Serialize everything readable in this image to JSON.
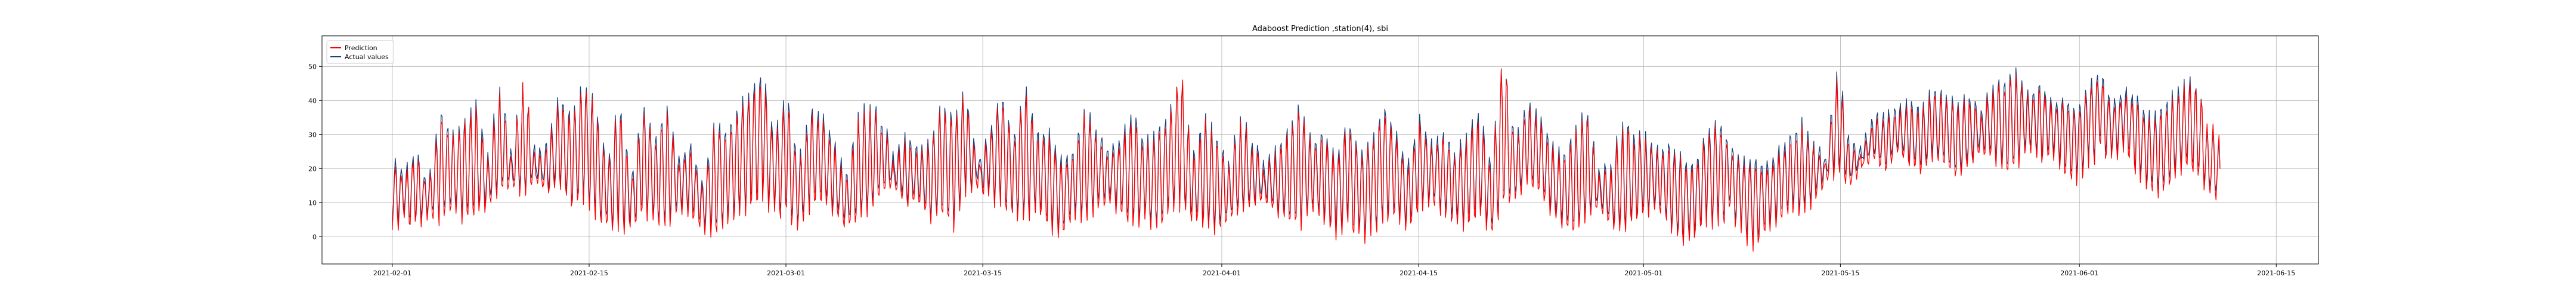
{
  "chart_data": {
    "type": "line",
    "title": "Adaboost Prediction ,station(4), sbi",
    "xlabel": "",
    "ylabel": "",
    "x_start": "2021-02-01",
    "x_end": "2021-06-11",
    "xlim": [
      "2021-01-27",
      "2021-06-18"
    ],
    "ylim": [
      -8,
      59
    ],
    "x_ticks": [
      "2021-02-01",
      "2021-02-15",
      "2021-03-01",
      "2021-03-15",
      "2021-04-01",
      "2021-04-15",
      "2021-05-01",
      "2021-05-15",
      "2021-06-01",
      "2021-06-15"
    ],
    "y_ticks": [
      0,
      10,
      20,
      30,
      40,
      50
    ],
    "grid": true,
    "legend_position": "top-left",
    "series": [
      {
        "name": "Prediction",
        "color": "#ff0000",
        "peaks": [
          22,
          18,
          25,
          14,
          36,
          29,
          33,
          38,
          22,
          44,
          24,
          48,
          22,
          26,
          40,
          34,
          44,
          38,
          20,
          40,
          16,
          38,
          28,
          38,
          22,
          26,
          14,
          34,
          30,
          38,
          42,
          48,
          28,
          42,
          20,
          36,
          34,
          26,
          16,
          34,
          38,
          34,
          22,
          28,
          24,
          26,
          38,
          34,
          42,
          20,
          30,
          42,
          28,
          44,
          30,
          30,
          22,
          24,
          38,
          30,
          24,
          28,
          36,
          26,
          30,
          34,
          50,
          22,
          34,
          28,
          20,
          34,
          28,
          20,
          24,
          30,
          38,
          26,
          30,
          22,
          34,
          24,
          28,
          38,
          30,
          20,
          34,
          26,
          30,
          24,
          30,
          36,
          20,
          56,
          26,
          38,
          34,
          26,
          22,
          30,
          36,
          18,
          20,
          34,
          30,
          28,
          24,
          26,
          22,
          20,
          30,
          34,
          26,
          22,
          22,
          20,
          24,
          28,
          32,
          26,
          22,
          50,
          26,
          24,
          34,
          34,
          36,
          38,
          36,
          42,
          40,
          38,
          40,
          36,
          44,
          46,
          48,
          40,
          44,
          38,
          40,
          36,
          44,
          48,
          38,
          42,
          40,
          34,
          36,
          40,
          44,
          46,
          34,
          30,
          24
        ],
        "troughs": [
          2,
          4,
          2,
          6,
          4,
          8,
          4,
          6,
          8,
          12,
          14,
          10,
          16,
          12,
          14,
          8,
          10,
          4,
          2,
          0,
          2,
          6,
          4,
          2,
          8,
          6,
          2,
          0,
          4,
          6,
          8,
          10,
          6,
          4,
          2,
          8,
          10,
          6,
          2,
          4,
          6,
          12,
          14,
          8,
          10,
          4,
          6,
          2,
          12,
          14,
          10,
          8,
          6,
          4,
          8,
          2,
          0,
          6,
          4,
          8,
          10,
          6,
          2,
          4,
          0,
          6,
          8,
          4,
          2,
          0,
          4,
          6,
          8,
          10,
          6,
          4,
          2,
          8,
          4,
          0,
          2,
          -2,
          0,
          4,
          6,
          2,
          8,
          10,
          6,
          4,
          2,
          6,
          0,
          8,
          10,
          14,
          12,
          6,
          2,
          0,
          4,
          8,
          2,
          0,
          4,
          6,
          8,
          2,
          -2,
          0,
          4,
          2,
          6,
          0,
          -4,
          2,
          4,
          8,
          6,
          10,
          16,
          18,
          14,
          20,
          22,
          18,
          24,
          20,
          18,
          22,
          20,
          16,
          20,
          24,
          22,
          18,
          20,
          26,
          22,
          24,
          18,
          16,
          20,
          24,
          22,
          26,
          18,
          14,
          12,
          16,
          20,
          18,
          12,
          10
        ]
      },
      {
        "name": "Actual values",
        "color": "#1f3f7a",
        "peaks": [
          24,
          20,
          26,
          15,
          38,
          30,
          34,
          40,
          24,
          46,
          26,
          47,
          24,
          28,
          42,
          36,
          46,
          40,
          22,
          42,
          18,
          40,
          30,
          40,
          24,
          28,
          16,
          36,
          32,
          40,
          44,
          50,
          30,
          44,
          22,
          38,
          36,
          28,
          18,
          36,
          40,
          36,
          24,
          30,
          26,
          28,
          40,
          36,
          44,
          22,
          32,
          44,
          30,
          46,
          32,
          32,
          24,
          26,
          40,
          32,
          26,
          30,
          38,
          28,
          32,
          36,
          48,
          24,
          36,
          30,
          22,
          36,
          30,
          22,
          26,
          32,
          40,
          28,
          32,
          24,
          36,
          26,
          30,
          40,
          32,
          22,
          36,
          28,
          32,
          26,
          32,
          38,
          22,
          55,
          28,
          40,
          36,
          28,
          24,
          32,
          38,
          20,
          22,
          36,
          32,
          30,
          26,
          28,
          24,
          22,
          32,
          36,
          28,
          24,
          24,
          22,
          26,
          30,
          34,
          28,
          24,
          52,
          28,
          26,
          36,
          36,
          38,
          40,
          38,
          44,
          42,
          40,
          42,
          38,
          46,
          48,
          50,
          42,
          46,
          40,
          42,
          38,
          46,
          50,
          40,
          44,
          42,
          36,
          38,
          42,
          46,
          47,
          32,
          28,
          22
        ],
        "troughs": [
          4,
          6,
          4,
          8,
          6,
          10,
          6,
          8,
          10,
          14,
          16,
          12,
          18,
          14,
          16,
          10,
          12,
          6,
          4,
          2,
          4,
          8,
          6,
          4,
          10,
          8,
          4,
          2,
          6,
          8,
          10,
          12,
          8,
          6,
          4,
          10,
          12,
          8,
          4,
          6,
          8,
          14,
          16,
          10,
          12,
          6,
          8,
          4,
          14,
          16,
          12,
          10,
          8,
          6,
          10,
          4,
          2,
          8,
          6,
          10,
          12,
          8,
          4,
          6,
          2,
          8,
          10,
          6,
          4,
          2,
          6,
          8,
          10,
          12,
          8,
          6,
          4,
          10,
          6,
          2,
          4,
          0,
          2,
          6,
          8,
          4,
          10,
          12,
          8,
          6,
          4,
          8,
          2,
          10,
          12,
          16,
          14,
          8,
          4,
          2,
          6,
          10,
          4,
          2,
          6,
          8,
          10,
          4,
          0,
          2,
          6,
          4,
          8,
          2,
          -2,
          4,
          6,
          10,
          8,
          12,
          18,
          20,
          16,
          22,
          24,
          20,
          26,
          22,
          20,
          24,
          22,
          18,
          22,
          26,
          24,
          20,
          22,
          28,
          24,
          26,
          20,
          18,
          22,
          26,
          24,
          28,
          20,
          16,
          14,
          18,
          22,
          20,
          14,
          12
        ]
      }
    ]
  }
}
